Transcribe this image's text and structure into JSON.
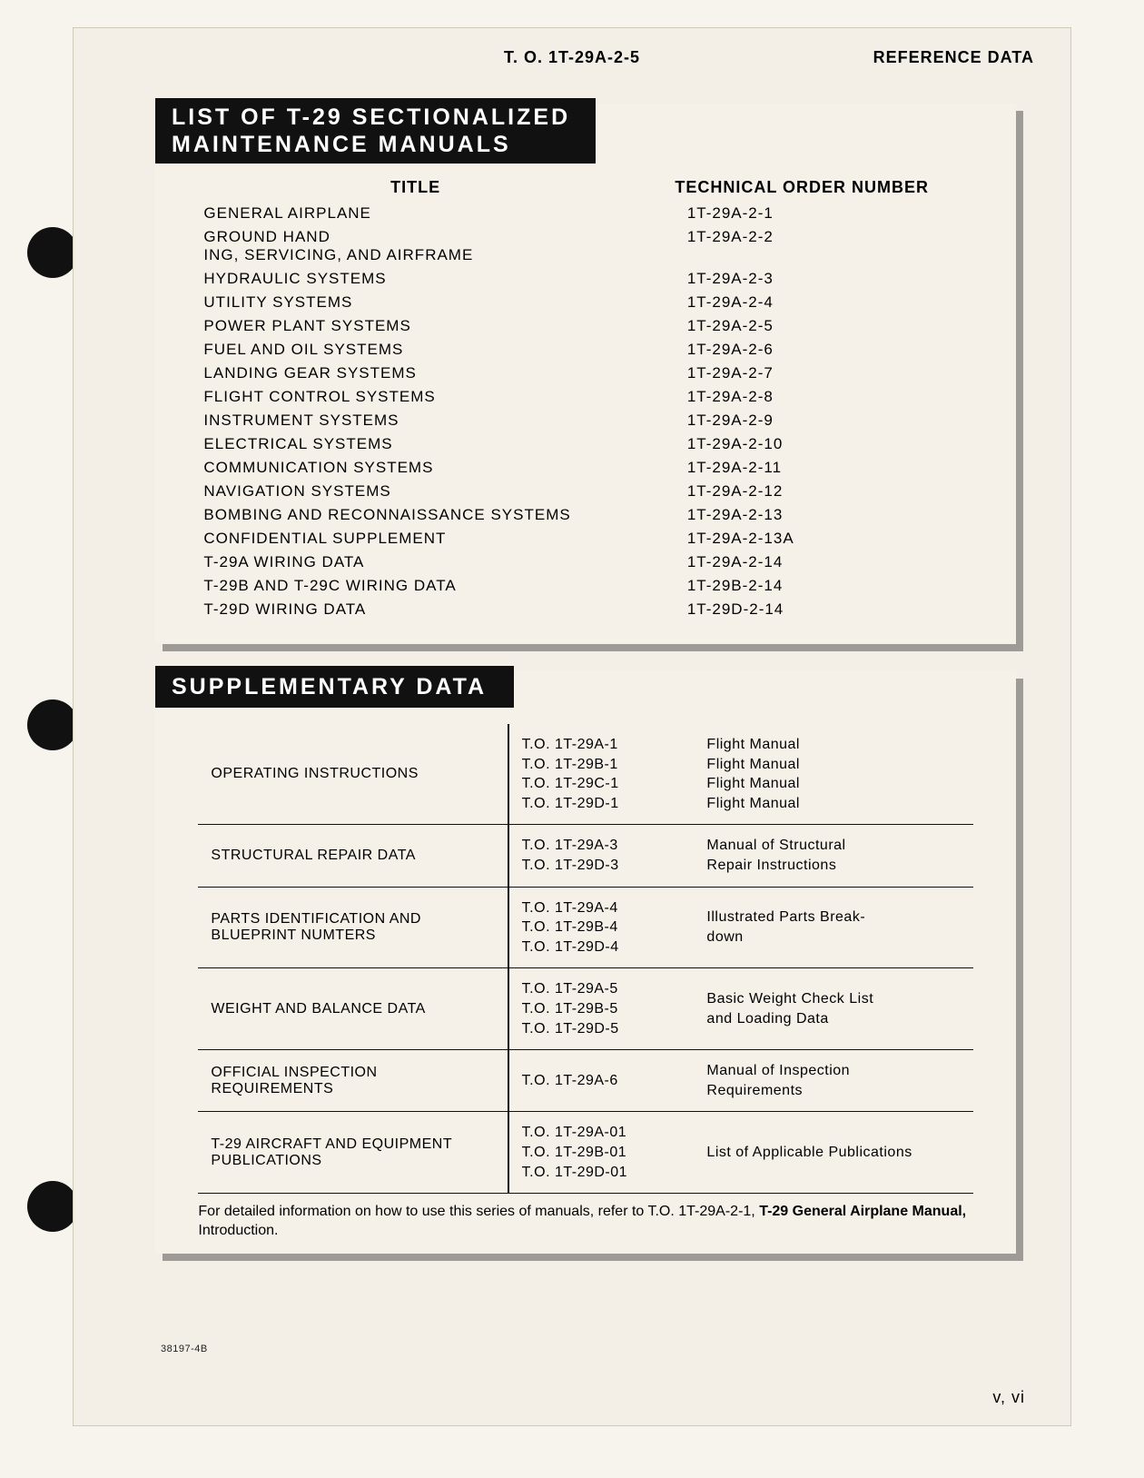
{
  "header": {
    "to": "T. O. 1T-29A-2-5",
    "reference": "REFERENCE DATA"
  },
  "banner1_line1": "LIST OF T-29 SECTIONALIZED",
  "banner1_line2": "MAINTENANCE MANUALS",
  "list_headers": {
    "title": "TITLE",
    "number": "TECHNICAL ORDER NUMBER"
  },
  "manuals": [
    {
      "title": "GENERAL AIRPLANE",
      "num": "1T-29A-2-1"
    },
    {
      "title": "GROUND HANDLING, SERVICING, AND AIRFRAME",
      "num": "1T-29A-2-2"
    },
    {
      "title": "HYDRAULIC SYSTEMS",
      "num": "1T-29A-2-3"
    },
    {
      "title": "UTILITY SYSTEMS",
      "num": "1T-29A-2-4"
    },
    {
      "title": "POWER PLANT SYSTEMS",
      "num": "1T-29A-2-5"
    },
    {
      "title": "FUEL AND OIL SYSTEMS",
      "num": "1T-29A-2-6"
    },
    {
      "title": "LANDING GEAR SYSTEMS",
      "num": "1T-29A-2-7"
    },
    {
      "title": "FLIGHT CONTROL SYSTEMS",
      "num": "1T-29A-2-8"
    },
    {
      "title": "INSTRUMENT SYSTEMS",
      "num": "1T-29A-2-9"
    },
    {
      "title": "ELECTRICAL SYSTEMS",
      "num": "1T-29A-2-10"
    },
    {
      "title": "COMMUNICATION SYSTEMS",
      "num": "1T-29A-2-11"
    },
    {
      "title": "NAVIGATION SYSTEMS",
      "num": "1T-29A-2-12"
    },
    {
      "title": "BOMBING AND RECONNAISSANCE SYSTEMS",
      "num": "1T-29A-2-13"
    },
    {
      "title": "CONFIDENTIAL SUPPLEMENT",
      "num": "1T-29A-2-13A"
    },
    {
      "title": "T-29A WIRING DATA",
      "num": "1T-29A-2-14"
    },
    {
      "title": "T-29B AND T-29C WIRING DATA",
      "num": "1T-29B-2-14"
    },
    {
      "title": "T-29D WIRING DATA",
      "num": "1T-29D-2-14"
    }
  ],
  "banner2": "SUPPLEMENTARY DATA",
  "supp": [
    {
      "cat": "OPERATING INSTRUCTIONS",
      "codes": [
        "T.O. 1T-29A-1",
        "T.O. 1T-29B-1",
        "T.O. 1T-29C-1",
        "T.O. 1T-29D-1"
      ],
      "desc": [
        "Flight Manual",
        "Flight Manual",
        "Flight Manual",
        "Flight Manual"
      ]
    },
    {
      "cat": "STRUCTURAL REPAIR DATA",
      "codes": [
        "T.O. 1T-29A-3",
        "T.O. 1T-29D-3"
      ],
      "desc": [
        "Manual of Structural",
        "Repair Instructions"
      ]
    },
    {
      "cat": "PARTS IDENTIFICATION AND BLUEPRINT NUMTERS",
      "codes": [
        "T.O. 1T-29A-4",
        "T.O. 1T-29B-4",
        "T.O. 1T-29D-4"
      ],
      "desc": [
        "Illustrated Parts Break-",
        "down"
      ]
    },
    {
      "cat": "WEIGHT AND BALANCE DATA",
      "codes": [
        "T.O. 1T-29A-5",
        "T.O. 1T-29B-5",
        "T.O. 1T-29D-5"
      ],
      "desc": [
        "Basic Weight Check List",
        "and Loading Data"
      ]
    },
    {
      "cat": "OFFICIAL INSPECTION REQUIREMENTS",
      "codes": [
        "T.O. 1T-29A-6"
      ],
      "desc": [
        "Manual of Inspection",
        "Requirements"
      ]
    },
    {
      "cat": "T-29 AIRCRAFT AND EQUIPMENT PUBLICATIONS",
      "codes": [
        "T.O. 1T-29A-01",
        "T.O. 1T-29B-01",
        "T.O. 1T-29D-01"
      ],
      "desc": [
        "List of Applicable Publications"
      ]
    }
  ],
  "footnote_pre": "For detailed information on how to use this series of manuals, refer to T.O. 1T-29A-2-1, ",
  "footnote_bold": "T-29 General Airplane Manual,",
  "footnote_post": " Introduction.",
  "code": "38197-4B",
  "pagenum": "v, vi"
}
